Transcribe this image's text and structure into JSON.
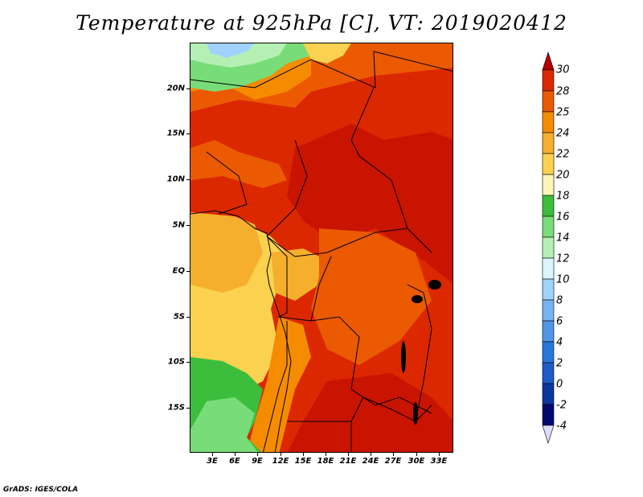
{
  "title": "Temperature at 925hPa [C], VT: 2019020412",
  "footer": "GrADS: IGES/COLA",
  "map": {
    "lat_labels": [
      "20N",
      "15N",
      "10N",
      "5N",
      "EQ",
      "5S",
      "10S",
      "15S"
    ],
    "lon_labels": [
      "3E",
      "6E",
      "9E",
      "12E",
      "15E",
      "18E",
      "21E",
      "24E",
      "27E",
      "30E",
      "33E"
    ],
    "lat_values": [
      20,
      15,
      10,
      5,
      0,
      -5,
      -10,
      -15
    ],
    "lon_values": [
      3,
      6,
      9,
      12,
      15,
      18,
      21,
      24,
      27,
      30,
      33
    ],
    "lon_range": [
      0,
      35
    ],
    "lat_range": [
      -19.5,
      24.5
    ]
  },
  "colorbar": {
    "labels": [
      "30",
      "28",
      "25",
      "24",
      "22",
      "20",
      "18",
      "16",
      "14",
      "12",
      "10",
      "8",
      "6",
      "4",
      "2",
      "0",
      "-2",
      "-4"
    ],
    "colors": [
      "#b40000",
      "#dc2800",
      "#eb5a00",
      "#f58c00",
      "#f5af2d",
      "#fad250",
      "#faf5b4",
      "#3cbe3c",
      "#78dc78",
      "#b4f0b4",
      "#dcf5ff",
      "#a0d2ff",
      "#78b4f0",
      "#5096e6",
      "#2878dc",
      "#1e5ac8",
      "#0a37a0",
      "#000a6e",
      "#dcdcff"
    ]
  }
}
